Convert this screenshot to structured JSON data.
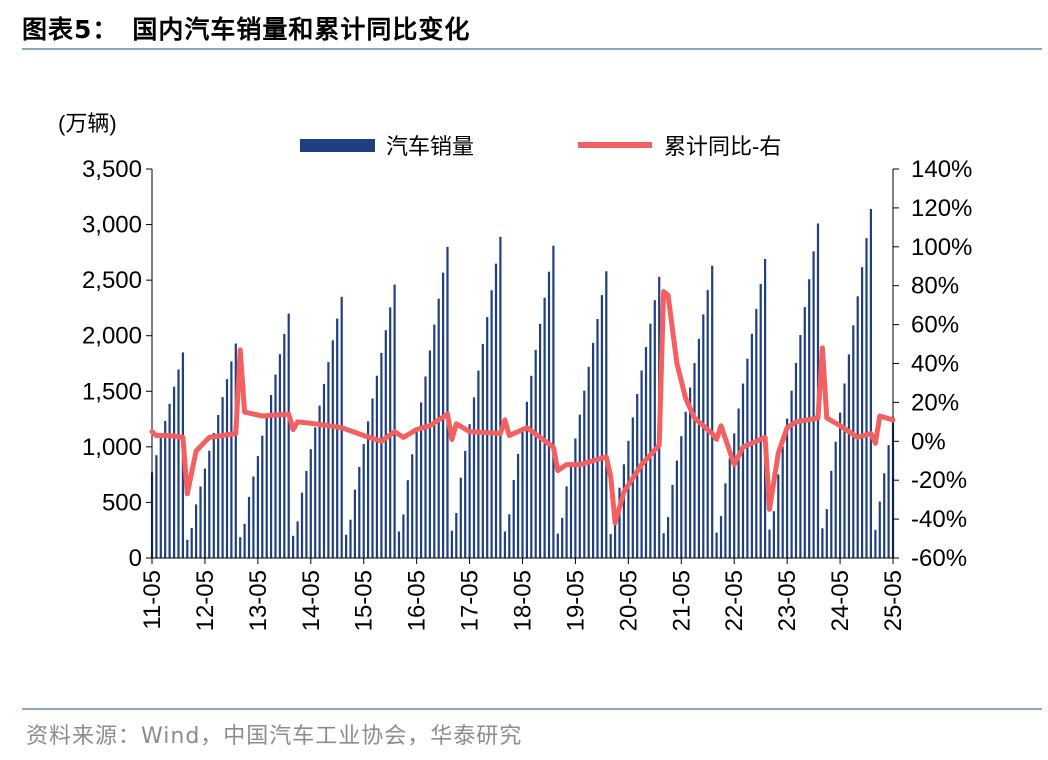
{
  "figure": {
    "label": "图表5：",
    "title": "国内汽车销量和累计同比变化",
    "source": "资料来源：Wind，中国汽车工业协会，华泰研究"
  },
  "colors": {
    "bar": "#1f3f7f",
    "line": "#f46060",
    "title": "#000000",
    "source": "#8c8c8c",
    "rule": "#8aa6c0"
  },
  "chart_data": {
    "type": "bar+line",
    "left_unit_label": "(万辆)",
    "ylim_left": [
      0,
      3500
    ],
    "yticks_left": [
      "0",
      "500",
      "1,000",
      "1,500",
      "2,000",
      "2,500",
      "3,000",
      "3,500"
    ],
    "ylim_right": [
      -60,
      140
    ],
    "yticks_right": [
      "-60%",
      "-40%",
      "-20%",
      "0%",
      "20%",
      "40%",
      "60%",
      "80%",
      "100%",
      "120%",
      "140%"
    ],
    "x_ticks": [
      "11-05",
      "12-05",
      "13-05",
      "14-05",
      "15-05",
      "16-05",
      "17-05",
      "18-05",
      "19-05",
      "20-05",
      "21-05",
      "22-05",
      "23-05",
      "24-05",
      "25-05"
    ],
    "legend": {
      "bar": "汽车销量",
      "line": "累计同比-右",
      "placement": "top"
    },
    "series": [
      {
        "name": "汽车销量",
        "axis": "left",
        "type": "bar",
        "annual_cumulative_dec": [
          1850,
          1930,
          2200,
          2350,
          2460,
          2800,
          2890,
          2810,
          2580,
          2530,
          2630,
          2690,
          3010,
          3140
        ],
        "annual_cumulative_may_2025": 1270
      },
      {
        "name": "累计同比-右",
        "axis": "right",
        "type": "line",
        "points": [
          [
            "2011-05",
            5
          ],
          [
            "2011-06",
            3
          ],
          [
            "2011-09",
            3
          ],
          [
            "2011-12",
            2
          ],
          [
            "2012-01",
            -27
          ],
          [
            "2012-03",
            -5
          ],
          [
            "2012-06",
            2
          ],
          [
            "2012-12",
            4
          ],
          [
            "2013-01",
            47
          ],
          [
            "2013-02",
            15
          ],
          [
            "2013-06",
            13
          ],
          [
            "2013-12",
            14
          ],
          [
            "2014-01",
            6
          ],
          [
            "2014-02",
            10
          ],
          [
            "2014-06",
            9
          ],
          [
            "2014-12",
            7
          ],
          [
            "2015-05",
            3
          ],
          [
            "2015-09",
            0
          ],
          [
            "2015-12",
            5
          ],
          [
            "2016-02",
            2
          ],
          [
            "2016-05",
            6
          ],
          [
            "2016-08",
            8
          ],
          [
            "2016-12",
            14
          ],
          [
            "2017-01",
            1
          ],
          [
            "2017-02",
            9
          ],
          [
            "2017-05",
            5
          ],
          [
            "2017-12",
            4
          ],
          [
            "2018-01",
            11
          ],
          [
            "2018-02",
            3
          ],
          [
            "2018-06",
            7
          ],
          [
            "2018-12",
            -3
          ],
          [
            "2019-01",
            -15
          ],
          [
            "2019-03",
            -12
          ],
          [
            "2019-06",
            -12
          ],
          [
            "2019-12",
            -8
          ],
          [
            "2020-01",
            -18
          ],
          [
            "2020-02",
            -42
          ],
          [
            "2020-04",
            -26
          ],
          [
            "2020-08",
            -12
          ],
          [
            "2020-12",
            -2
          ],
          [
            "2021-01",
            77
          ],
          [
            "2021-02",
            75
          ],
          [
            "2021-04",
            40
          ],
          [
            "2021-06",
            22
          ],
          [
            "2021-08",
            12
          ],
          [
            "2021-12",
            4
          ],
          [
            "2022-01",
            1
          ],
          [
            "2022-02",
            8
          ],
          [
            "2022-05",
            -12
          ],
          [
            "2022-07",
            -3
          ],
          [
            "2022-12",
            2
          ],
          [
            "2023-01",
            -35
          ],
          [
            "2023-03",
            -6
          ],
          [
            "2023-05",
            7
          ],
          [
            "2023-07",
            10
          ],
          [
            "2023-12",
            12
          ],
          [
            "2024-01",
            48
          ],
          [
            "2024-02",
            12
          ],
          [
            "2024-05",
            8
          ],
          [
            "2024-09",
            2
          ],
          [
            "2024-12",
            4
          ],
          [
            "2025-01",
            -1
          ],
          [
            "2025-02",
            13
          ],
          [
            "2025-05",
            11
          ]
        ]
      }
    ]
  }
}
